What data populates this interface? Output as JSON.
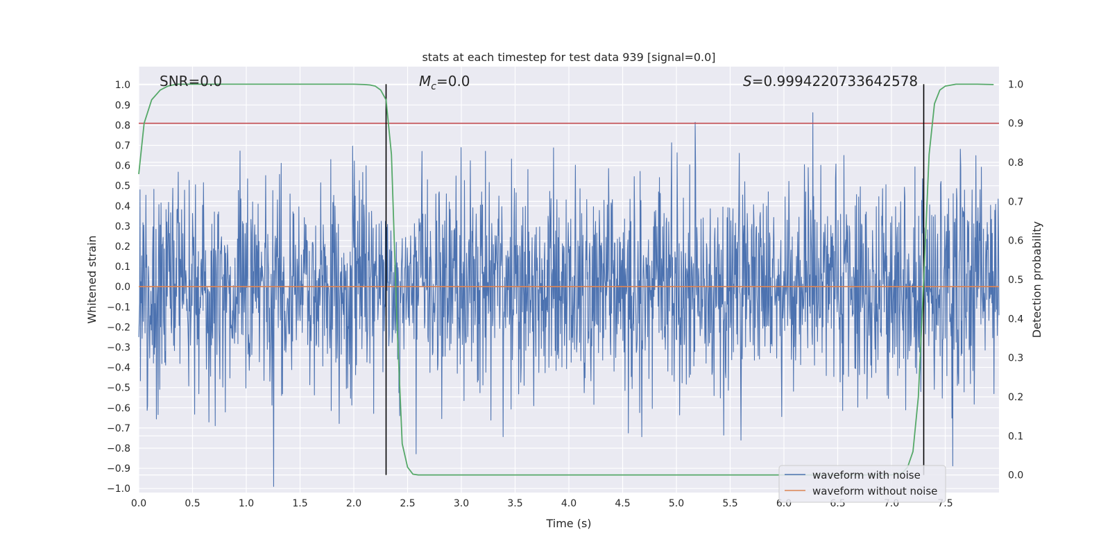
{
  "chart_data": {
    "type": "line",
    "title": "stats at each timestep for test data 939 [signal=0.0]",
    "xlabel": "Time (s)",
    "ylabel": "Whitened strain",
    "y2label": "Detection probability",
    "xlim": [
      0.0,
      8.0
    ],
    "ylim": [
      -1.02,
      1.09
    ],
    "y2lim": [
      -0.045,
      1.045
    ],
    "xticks": [
      "0.0",
      "0.5",
      "1.0",
      "1.5",
      "2.0",
      "2.5",
      "3.0",
      "3.5",
      "4.0",
      "4.5",
      "5.0",
      "5.5",
      "6.0",
      "6.5",
      "7.0",
      "7.5"
    ],
    "yticks": [
      "1.0",
      "0.9",
      "0.8",
      "0.7",
      "0.6",
      "0.5",
      "0.4",
      "0.3",
      "0.2",
      "0.1",
      "0.0",
      "−0.1",
      "−0.2",
      "−0.3",
      "−0.4",
      "−0.5",
      "−0.6",
      "−0.7",
      "−0.8",
      "−0.9",
      "−1.0"
    ],
    "y2ticks": [
      "1.0",
      "0.9",
      "0.8",
      "0.7",
      "0.6",
      "0.5",
      "0.4",
      "0.3",
      "0.2",
      "0.1",
      "0.0"
    ],
    "annotations": {
      "snr": "SNR=0.0",
      "mc_symbol": "M",
      "mc_sub": "c",
      "mc_value": "=0.0",
      "s_symbol": "S",
      "s_value": "=0.9994220733642578"
    },
    "threshold": 0.9,
    "vlines": [
      2.3,
      7.3
    ],
    "noise": {
      "samples": 2048,
      "sigma": 0.26,
      "clip": 0.99,
      "seed": 939
    },
    "series": [
      {
        "name": "waveform with noise",
        "color": "#4c72b0",
        "axis": "left"
      },
      {
        "name": "waveform without noise",
        "color": "#dd8452",
        "axis": "left",
        "y": 0.0
      },
      {
        "name": "detection probability",
        "color": "#55a868",
        "axis": "right",
        "x": [
          0.0,
          0.05,
          0.12,
          0.2,
          0.27,
          0.35,
          0.5,
          1.0,
          1.5,
          2.0,
          2.1,
          2.15,
          2.2,
          2.25,
          2.3,
          2.35,
          2.4,
          2.45,
          2.5,
          2.55,
          2.6,
          3.0,
          4.0,
          5.0,
          6.0,
          6.5,
          7.0,
          7.1,
          7.15,
          7.2,
          7.25,
          7.3,
          7.35,
          7.4,
          7.45,
          7.5,
          7.6,
          7.8,
          7.95
        ],
        "y": [
          0.77,
          0.9,
          0.96,
          0.985,
          0.995,
          1.0,
          1.0,
          1.0,
          1.0,
          1.0,
          0.999,
          0.998,
          0.995,
          0.985,
          0.96,
          0.82,
          0.4,
          0.08,
          0.02,
          0.002,
          0.0,
          0.0,
          0.0,
          0.0,
          0.0,
          0.0,
          0.0,
          0.005,
          0.02,
          0.06,
          0.2,
          0.5,
          0.82,
          0.95,
          0.985,
          0.995,
          1.0,
          1.0,
          0.999
        ]
      }
    ],
    "threshold_color": "#c44e52",
    "legend": {
      "position": "lower-right"
    }
  }
}
